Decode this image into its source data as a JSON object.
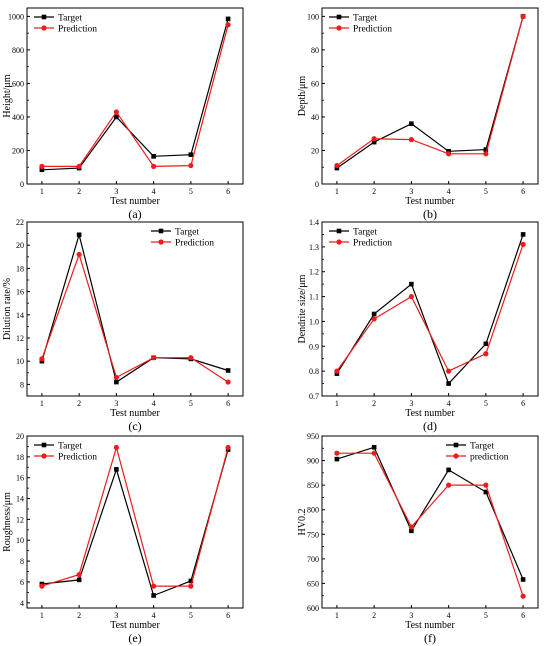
{
  "chart_data": [
    {
      "type": "line",
      "panel_label": "(a)",
      "xlabel": "Test number",
      "ylabel": "Height/μm",
      "x": [
        1,
        2,
        3,
        4,
        5,
        6
      ],
      "xlim": [
        0.6,
        6.4
      ],
      "ylim": [
        0,
        1050
      ],
      "yticks": [
        0,
        200,
        400,
        600,
        800,
        1000
      ],
      "legend_position": "top-left",
      "series": [
        {
          "name": "Target",
          "marker": "square",
          "color": "#000000",
          "values": [
            85,
            95,
            400,
            165,
            175,
            985
          ]
        },
        {
          "name": "Prediction",
          "marker": "circle",
          "color": "#ee1c1c",
          "values": [
            105,
            105,
            430,
            105,
            110,
            950
          ]
        }
      ]
    },
    {
      "type": "line",
      "panel_label": "(b)",
      "xlabel": "Test number",
      "ylabel": "Depth/μm",
      "x": [
        1,
        2,
        3,
        4,
        5,
        6
      ],
      "xlim": [
        0.6,
        6.4
      ],
      "ylim": [
        0,
        105
      ],
      "yticks": [
        0,
        20,
        40,
        60,
        80,
        100
      ],
      "legend_position": "top-left",
      "series": [
        {
          "name": "Target",
          "marker": "square",
          "color": "#000000",
          "values": [
            9.5,
            25,
            36,
            19.5,
            20.5,
            100
          ]
        },
        {
          "name": "Prediction",
          "marker": "circle",
          "color": "#ee1c1c",
          "values": [
            11,
            27,
            26.5,
            18,
            18,
            100
          ]
        }
      ]
    },
    {
      "type": "line",
      "panel_label": "(c)",
      "xlabel": "Test number",
      "ylabel": "Dilution rate/%",
      "x": [
        1,
        2,
        3,
        4,
        5,
        6
      ],
      "xlim": [
        0.6,
        6.4
      ],
      "ylim": [
        7,
        22
      ],
      "yticks": [
        8,
        10,
        12,
        14,
        16,
        18,
        20,
        22
      ],
      "legend_position": "top-right",
      "series": [
        {
          "name": "Target",
          "marker": "square",
          "color": "#000000",
          "values": [
            10,
            20.9,
            8.2,
            10.3,
            10.2,
            9.2
          ]
        },
        {
          "name": "Prediction",
          "marker": "circle",
          "color": "#ee1c1c",
          "values": [
            10.2,
            19.2,
            8.6,
            10.3,
            10.3,
            8.2
          ]
        }
      ]
    },
    {
      "type": "line",
      "panel_label": "(d)",
      "xlabel": "Test number",
      "ylabel": "Dendrite size/μm",
      "x": [
        1,
        2,
        3,
        4,
        5,
        6
      ],
      "xlim": [
        0.6,
        6.4
      ],
      "ylim": [
        0.7,
        1.4
      ],
      "yticks": [
        0.7,
        0.8,
        0.9,
        1.0,
        1.1,
        1.2,
        1.3,
        1.4
      ],
      "legend_position": "top-left",
      "series": [
        {
          "name": "Target",
          "marker": "square",
          "color": "#000000",
          "values": [
            0.79,
            1.03,
            1.15,
            0.75,
            0.91,
            1.35
          ]
        },
        {
          "name": "Prediction",
          "marker": "circle",
          "color": "#ee1c1c",
          "values": [
            0.8,
            1.01,
            1.1,
            0.8,
            0.87,
            1.31
          ]
        }
      ]
    },
    {
      "type": "line",
      "panel_label": "(e)",
      "xlabel": "Test number",
      "ylabel": "Roughness/μm",
      "x": [
        1,
        2,
        3,
        4,
        5,
        6
      ],
      "xlim": [
        0.6,
        6.4
      ],
      "ylim": [
        3.5,
        20
      ],
      "yticks": [
        4,
        6,
        8,
        10,
        12,
        14,
        16,
        18,
        20
      ],
      "legend_position": "top-left",
      "series": [
        {
          "name": "Target",
          "marker": "square",
          "color": "#000000",
          "values": [
            5.8,
            6.2,
            16.8,
            4.7,
            6.1,
            18.7
          ]
        },
        {
          "name": "Prediction",
          "marker": "circle",
          "color": "#ee1c1c",
          "values": [
            5.6,
            6.7,
            18.9,
            5.6,
            5.6,
            18.9
          ]
        }
      ]
    },
    {
      "type": "line",
      "panel_label": "(f)",
      "xlabel": "Test number",
      "ylabel": "HV0.2",
      "x": [
        1,
        2,
        3,
        4,
        5,
        6
      ],
      "xlim": [
        0.6,
        6.4
      ],
      "ylim": [
        600,
        950
      ],
      "yticks": [
        600,
        650,
        700,
        750,
        800,
        850,
        900,
        950
      ],
      "legend_position": "top-right",
      "series": [
        {
          "name": "Target",
          "marker": "square",
          "color": "#000000",
          "values": [
            903,
            927,
            757,
            881,
            836,
            658
          ]
        },
        {
          "name": "prediction",
          "marker": "circle",
          "color": "#ee1c1c",
          "values": [
            915,
            915,
            765,
            850,
            850,
            624
          ]
        }
      ]
    }
  ]
}
